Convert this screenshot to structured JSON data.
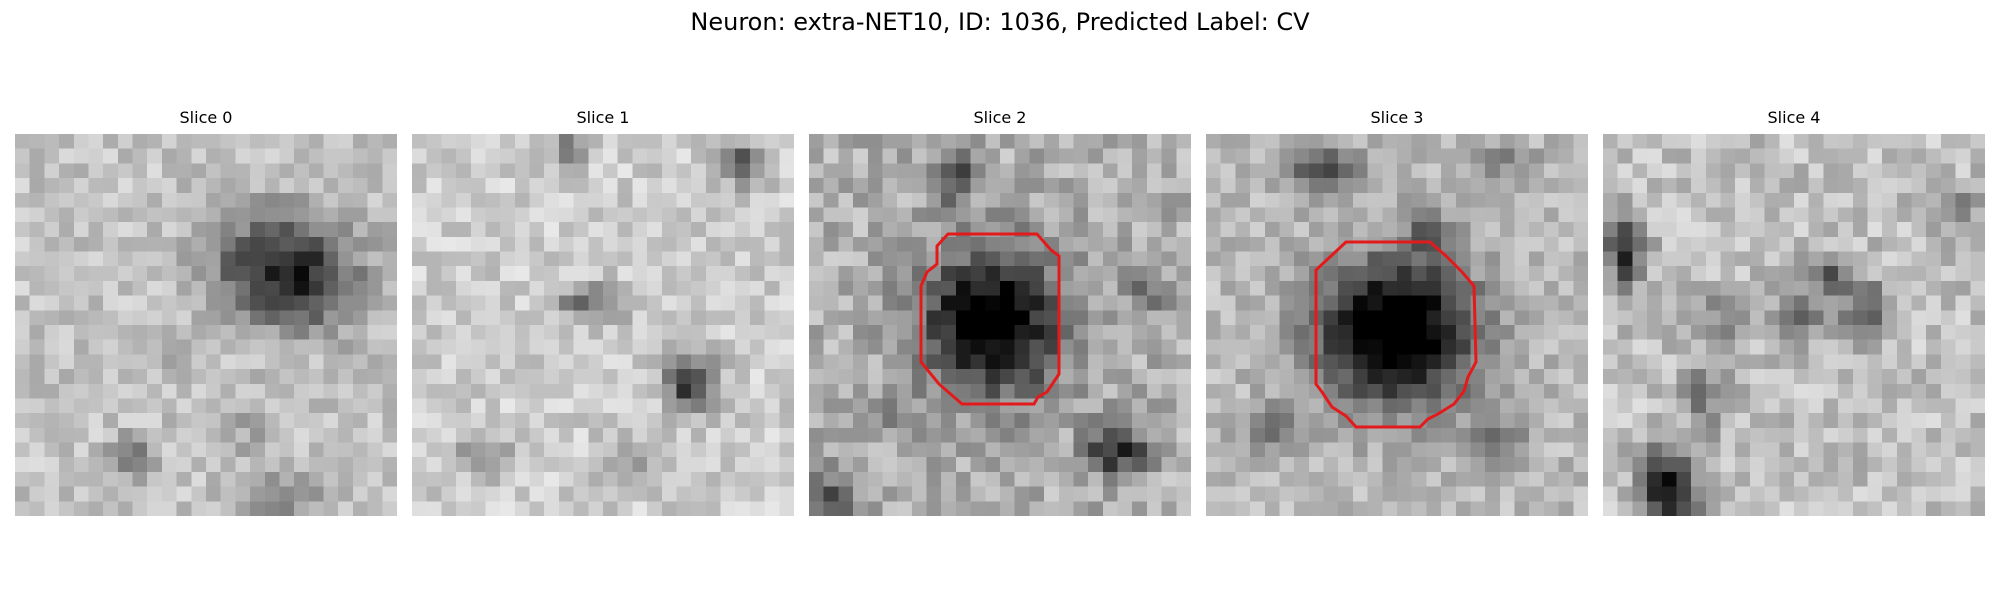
{
  "figure": {
    "title": "Neuron: extra-NET10, ID: 1036, Predicted Label: CV"
  },
  "panels": [
    {
      "title": "Slice 0",
      "has_contour": false
    },
    {
      "title": "Slice 1",
      "has_contour": false
    },
    {
      "title": "Slice 2",
      "has_contour": true
    },
    {
      "title": "Slice 3",
      "has_contour": true
    },
    {
      "title": "Slice 4",
      "has_contour": false
    }
  ],
  "style": {
    "contour_color": "#e31a1c",
    "colormap": "grayscale"
  }
}
